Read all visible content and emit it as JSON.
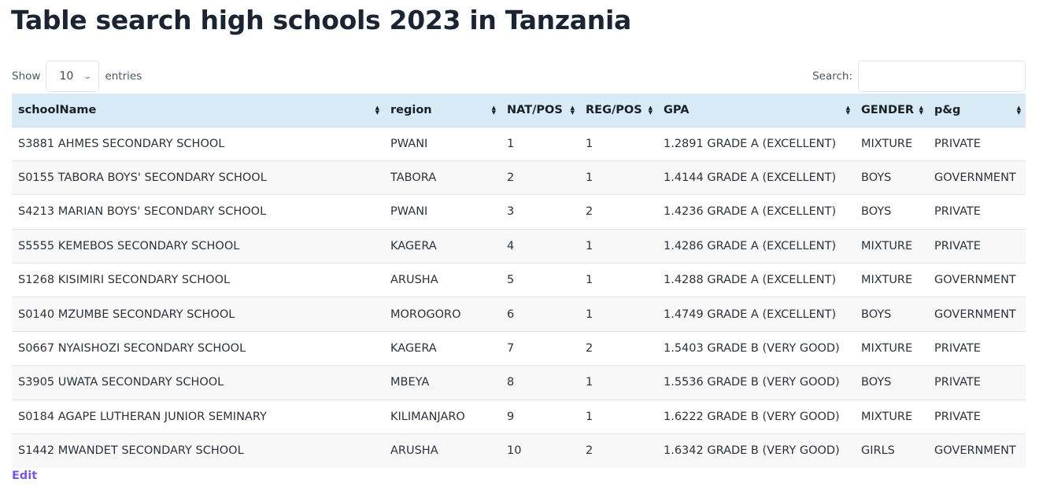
{
  "page": {
    "title": "Table search high schools 2023 in Tanzania"
  },
  "controls": {
    "show_label": "Show",
    "page_length": "10",
    "entries_label": "entries",
    "search_label": "Search:",
    "search_value": "",
    "search_placeholder": ""
  },
  "table": {
    "columns": [
      {
        "label": "schoolName",
        "sort_icon": "sort-both-icon"
      },
      {
        "label": "region",
        "sort_icon": "sort-both-icon"
      },
      {
        "label": "NAT/POS",
        "sort_icon": "sort-both-icon"
      },
      {
        "label": "REG/POS",
        "sort_icon": "sort-both-icon"
      },
      {
        "label": "GPA",
        "sort_icon": "sort-both-icon"
      },
      {
        "label": "GENDER",
        "sort_icon": "sort-both-icon"
      },
      {
        "label": "p&g",
        "sort_icon": "sort-both-icon"
      }
    ],
    "rows": [
      {
        "schoolName": "S3881 AHMES SECONDARY SCHOOL",
        "region": "PWANI",
        "nat_pos": "1",
        "reg_pos": "1",
        "gpa": "1.2891 GRADE A (EXCELLENT)",
        "gender": "MIXTURE",
        "pg": "PRIVATE"
      },
      {
        "schoolName": "S0155 TABORA BOYS' SECONDARY SCHOOL",
        "region": "TABORA",
        "nat_pos": "2",
        "reg_pos": "1",
        "gpa": "1.4144 GRADE A (EXCELLENT)",
        "gender": "BOYS",
        "pg": "GOVERNMENT"
      },
      {
        "schoolName": "S4213 MARIAN BOYS' SECONDARY SCHOOL",
        "region": "PWANI",
        "nat_pos": "3",
        "reg_pos": "2",
        "gpa": "1.4236 GRADE A (EXCELLENT)",
        "gender": "BOYS",
        "pg": "PRIVATE"
      },
      {
        "schoolName": "S5555 KEMEBOS SECONDARY SCHOOL",
        "region": "KAGERA",
        "nat_pos": "4",
        "reg_pos": "1",
        "gpa": "1.4286 GRADE A (EXCELLENT)",
        "gender": "MIXTURE",
        "pg": "PRIVATE"
      },
      {
        "schoolName": "S1268 KISIMIRI SECONDARY SCHOOL",
        "region": "ARUSHA",
        "nat_pos": "5",
        "reg_pos": "1",
        "gpa": "1.4288 GRADE A (EXCELLENT)",
        "gender": "MIXTURE",
        "pg": "GOVERNMENT"
      },
      {
        "schoolName": "S0140 MZUMBE SECONDARY SCHOOL",
        "region": "MOROGORO",
        "nat_pos": "6",
        "reg_pos": "1",
        "gpa": "1.4749 GRADE A (EXCELLENT)",
        "gender": "BOYS",
        "pg": "GOVERNMENT"
      },
      {
        "schoolName": "S0667 NYAISHOZI SECONDARY SCHOOL",
        "region": "KAGERA",
        "nat_pos": "7",
        "reg_pos": "2",
        "gpa": "1.5403 GRADE B (VERY GOOD)",
        "gender": "MIXTURE",
        "pg": "PRIVATE"
      },
      {
        "schoolName": "S3905 UWATA SECONDARY SCHOOL",
        "region": "MBEYA",
        "nat_pos": "8",
        "reg_pos": "1",
        "gpa": "1.5536 GRADE B (VERY GOOD)",
        "gender": "BOYS",
        "pg": "PRIVATE"
      },
      {
        "schoolName": "S0184 AGAPE LUTHERAN JUNIOR SEMINARY",
        "region": "KILIMANJARO",
        "nat_pos": "9",
        "reg_pos": "1",
        "gpa": "1.6222 GRADE B (VERY GOOD)",
        "gender": "MIXTURE",
        "pg": "PRIVATE"
      },
      {
        "schoolName": "S1442 MWANDET SECONDARY SCHOOL",
        "region": "ARUSHA",
        "nat_pos": "10",
        "reg_pos": "2",
        "gpa": "1.6342 GRADE B (VERY GOOD)",
        "gender": "GIRLS",
        "pg": "GOVERNMENT"
      }
    ]
  },
  "footer": {
    "edit_label": "Edit"
  },
  "colors": {
    "title": "#1b2433",
    "header_bg": "#d7eaf5",
    "stripe_bg": "#f8f8f8",
    "link": "#7658f0"
  },
  "icons": {
    "sort": "⯁",
    "chevron": "˅"
  }
}
